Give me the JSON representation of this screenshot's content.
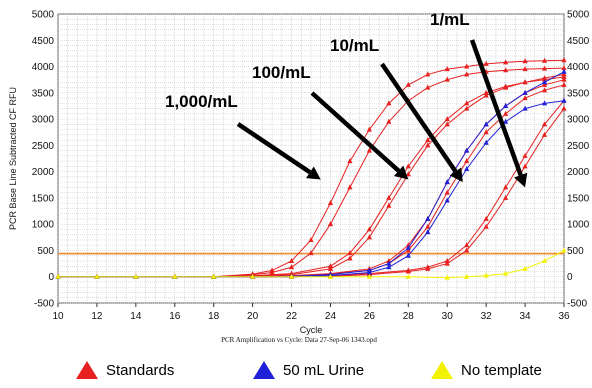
{
  "chart_data": {
    "type": "line",
    "xlabel": "Cycle",
    "ylabel": "PCR Base Line Subtracted CF RFU",
    "caption": "PCR Amplification vs Cycle: Data 27-Sep-06 1343.opd",
    "xlim": [
      10,
      36
    ],
    "ylim": [
      -500,
      5000
    ],
    "x_ticks": [
      10,
      12,
      14,
      16,
      18,
      20,
      22,
      24,
      26,
      28,
      30,
      32,
      34,
      36
    ],
    "y_ticks": [
      -500,
      0,
      500,
      1000,
      1500,
      2000,
      2500,
      3000,
      3500,
      4000,
      4500,
      5000
    ],
    "grid": true,
    "threshold": {
      "value": 440,
      "color": "#f08a30"
    },
    "series_colors": {
      "standards": "#e82020",
      "urine": "#2020d8",
      "no_template": "#f2f200"
    },
    "series": [
      {
        "group": "standards",
        "x": [
          10,
          12,
          14,
          16,
          18,
          20,
          21,
          22,
          23,
          24,
          25,
          26,
          27,
          28,
          29,
          30,
          31,
          32,
          33,
          34,
          35,
          36
        ],
        "y": [
          0,
          0,
          0,
          0,
          0,
          50,
          120,
          300,
          700,
          1400,
          2200,
          2800,
          3300,
          3650,
          3850,
          3950,
          4000,
          4050,
          4080,
          4100,
          4110,
          4120
        ]
      },
      {
        "group": "standards",
        "x": [
          10,
          12,
          14,
          16,
          18,
          20,
          21,
          22,
          23,
          24,
          25,
          26,
          27,
          28,
          29,
          30,
          31,
          32,
          33,
          34,
          35,
          36
        ],
        "y": [
          0,
          0,
          0,
          0,
          0,
          40,
          80,
          180,
          450,
          1000,
          1700,
          2400,
          2950,
          3350,
          3600,
          3750,
          3850,
          3900,
          3930,
          3950,
          3960,
          3970
        ]
      },
      {
        "group": "standards",
        "x": [
          10,
          12,
          14,
          16,
          18,
          20,
          22,
          24,
          25,
          26,
          27,
          28,
          29,
          30,
          31,
          32,
          33,
          34,
          35,
          36
        ],
        "y": [
          0,
          0,
          0,
          0,
          0,
          20,
          60,
          200,
          450,
          900,
          1500,
          2100,
          2600,
          3000,
          3300,
          3500,
          3620,
          3700,
          3750,
          3800
        ]
      },
      {
        "group": "standards",
        "x": [
          10,
          12,
          14,
          16,
          18,
          20,
          22,
          24,
          25,
          26,
          27,
          28,
          29,
          30,
          31,
          32,
          33,
          34,
          35,
          36
        ],
        "y": [
          0,
          0,
          0,
          0,
          0,
          10,
          40,
          150,
          350,
          750,
          1350,
          1950,
          2500,
          2900,
          3200,
          3450,
          3600,
          3700,
          3780,
          3850
        ]
      },
      {
        "group": "standards",
        "x": [
          10,
          12,
          14,
          16,
          18,
          20,
          22,
          24,
          26,
          27,
          28,
          29,
          30,
          31,
          32,
          33,
          34,
          35,
          36
        ],
        "y": [
          0,
          0,
          0,
          0,
          0,
          0,
          20,
          60,
          150,
          300,
          600,
          1100,
          1800,
          2400,
          2900,
          3250,
          3500,
          3650,
          3750
        ]
      },
      {
        "group": "standards",
        "x": [
          10,
          12,
          14,
          16,
          18,
          20,
          22,
          24,
          26,
          27,
          28,
          29,
          30,
          31,
          32,
          33,
          34,
          35,
          36
        ],
        "y": [
          0,
          0,
          0,
          0,
          0,
          0,
          10,
          50,
          120,
          250,
          500,
          950,
          1600,
          2200,
          2750,
          3100,
          3400,
          3550,
          3650
        ]
      },
      {
        "group": "standards",
        "x": [
          10,
          12,
          14,
          16,
          18,
          20,
          22,
          24,
          26,
          28,
          29,
          30,
          31,
          32,
          33,
          34,
          35,
          36
        ],
        "y": [
          0,
          0,
          0,
          0,
          0,
          0,
          0,
          20,
          60,
          120,
          180,
          300,
          600,
          1100,
          1700,
          2300,
          2900,
          3350
        ]
      },
      {
        "group": "standards",
        "x": [
          10,
          12,
          14,
          16,
          18,
          20,
          22,
          24,
          26,
          28,
          29,
          30,
          31,
          32,
          33,
          34,
          35,
          36
        ],
        "y": [
          0,
          0,
          0,
          0,
          0,
          0,
          0,
          10,
          40,
          100,
          150,
          250,
          500,
          950,
          1500,
          2100,
          2700,
          3200
        ]
      },
      {
        "group": "urine",
        "x": [
          10,
          12,
          14,
          16,
          18,
          20,
          22,
          24,
          26,
          27,
          28,
          29,
          30,
          31,
          32,
          33,
          34,
          35,
          36
        ],
        "y": [
          0,
          0,
          0,
          0,
          0,
          0,
          10,
          40,
          120,
          250,
          550,
          1100,
          1800,
          2400,
          2900,
          3250,
          3500,
          3700,
          3900
        ]
      },
      {
        "group": "urine",
        "x": [
          10,
          12,
          14,
          16,
          18,
          20,
          22,
          24,
          26,
          27,
          28,
          29,
          30,
          31,
          32,
          33,
          34,
          35,
          36
        ],
        "y": [
          0,
          0,
          0,
          0,
          0,
          0,
          0,
          20,
          80,
          180,
          400,
          850,
          1450,
          2050,
          2550,
          2950,
          3200,
          3300,
          3350
        ]
      },
      {
        "group": "no_template",
        "x": [
          10,
          12,
          14,
          16,
          18,
          20,
          22,
          24,
          26,
          28,
          30,
          31,
          32,
          33,
          34,
          35,
          36
        ],
        "y": [
          0,
          0,
          0,
          0,
          0,
          0,
          0,
          0,
          0,
          0,
          -20,
          0,
          20,
          60,
          150,
          300,
          500
        ]
      }
    ],
    "annotations": [
      {
        "text": "1,000/mL",
        "arrow_to": [
          23.5,
          1850
        ]
      },
      {
        "text": "100/mL",
        "arrow_to": [
          28.0,
          1850
        ]
      },
      {
        "text": "10/mL",
        "arrow_to": [
          30.8,
          1800
        ]
      },
      {
        "text": "1/mL",
        "arrow_to": [
          34.0,
          1700
        ]
      }
    ],
    "legend": [
      {
        "label": "Standards",
        "group": "standards"
      },
      {
        "label": "50 mL Urine",
        "group": "urine"
      },
      {
        "label": "No template",
        "group": "no_template"
      }
    ]
  }
}
